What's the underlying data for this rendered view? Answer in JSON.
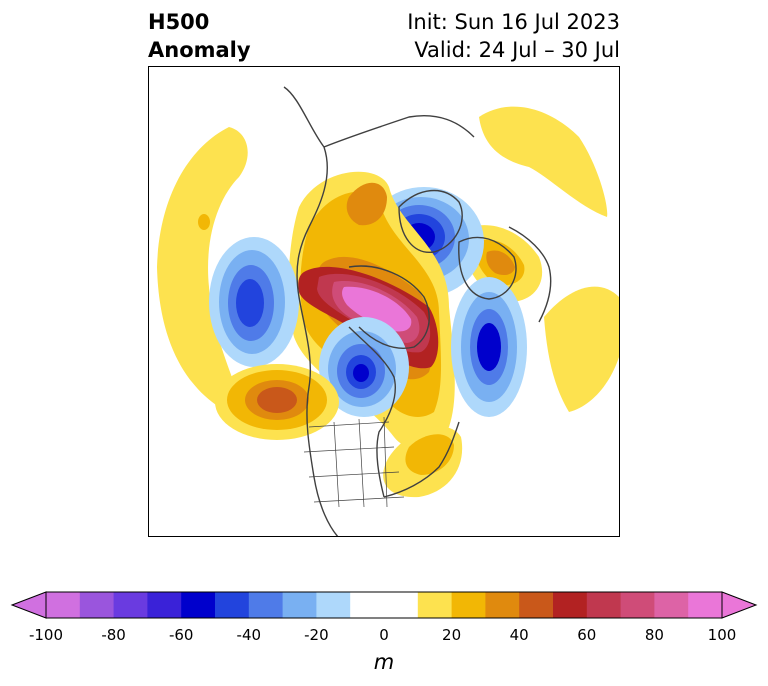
{
  "title": {
    "left_line1": "H500",
    "left_line2": "Anomaly",
    "right_line1": "Init: Sun 16 Jul 2023",
    "right_line2": "Valid: 24 Jul – 30 Jul"
  },
  "colorbar": {
    "unit": "m",
    "ticks": [
      "-100",
      "-80",
      "-60",
      "-40",
      "-20",
      "0",
      "20",
      "40",
      "60",
      "80",
      "100"
    ],
    "colors": [
      "#d070e0",
      "#9a55dd",
      "#6a3be0",
      "#3a22d8",
      "#0000cc",
      "#2244dd",
      "#4f7be8",
      "#79b0f2",
      "#aed8fb",
      "#ffffff",
      "#ffffff",
      "#fde24f",
      "#f2b705",
      "#e08a0e",
      "#c9581a",
      "#b22222",
      "#c0384f",
      "#cf4c78",
      "#dd63a6",
      "#ea76d8"
    ],
    "extend_min_color": "#d070e0",
    "extend_max_color": "#ea76d8"
  }
}
